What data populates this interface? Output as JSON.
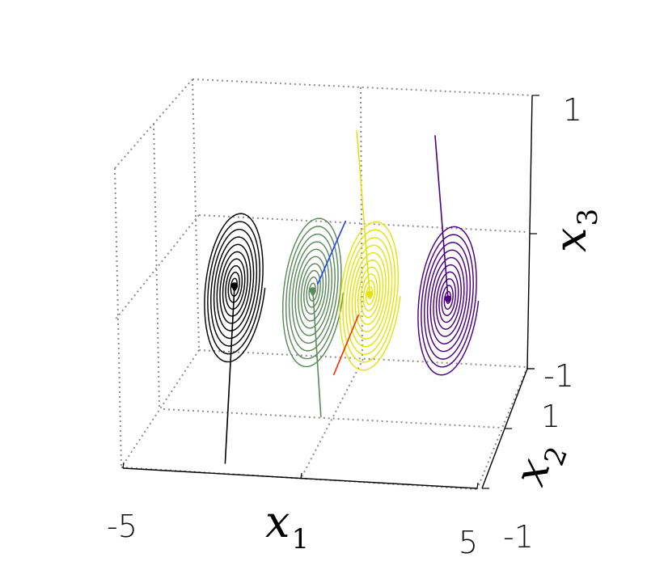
{
  "chart_data": {
    "type": "line",
    "projection": "3d",
    "title": "",
    "grid": true,
    "axes": {
      "x1": {
        "label_main": "x",
        "label_sub": "1",
        "range": [
          -5,
          5
        ],
        "tick_labels": [
          "-5",
          "5"
        ]
      },
      "x2": {
        "label_main": "x",
        "label_sub": "2",
        "range": [
          -1,
          1
        ],
        "tick_labels": [
          "-1",
          "1"
        ]
      },
      "x3": {
        "label_main": "x",
        "label_sub": "3",
        "range": [
          -1,
          1
        ],
        "tick_labels": [
          "-1",
          "1"
        ]
      }
    },
    "series": [
      {
        "color": "#000000",
        "center": {
          "x1": -3.0,
          "x2": 0.0,
          "x3": 0.0
        },
        "start": {
          "x1": -2.3,
          "x2": -0.8,
          "x3": -1.0
        },
        "turns": 11
      },
      {
        "color": "#5b8a5b",
        "center": {
          "x1": -0.8,
          "x2": 0.0,
          "x3": 0.0
        },
        "start": {
          "x1": -0.7,
          "x2": 0.2,
          "x3": -1.0
        },
        "turns": 11
      },
      {
        "color": "#e3e312",
        "center": {
          "x1": 0.8,
          "x2": 0.0,
          "x3": 0.0
        },
        "start": {
          "x1": -0.2,
          "x2": 0.5,
          "x3": 1.0
        },
        "turns": 11
      },
      {
        "color": "#4b0082",
        "center": {
          "x1": 3.0,
          "x2": 0.0,
          "x3": 0.0
        },
        "start": {
          "x1": 2.0,
          "x2": 0.5,
          "x3": 1.0
        },
        "turns": 11
      }
    ],
    "accent_segments": [
      {
        "color": "#1e3cff",
        "from_series": 2
      },
      {
        "color": "#ff2a00",
        "from_series": 1
      }
    ]
  }
}
